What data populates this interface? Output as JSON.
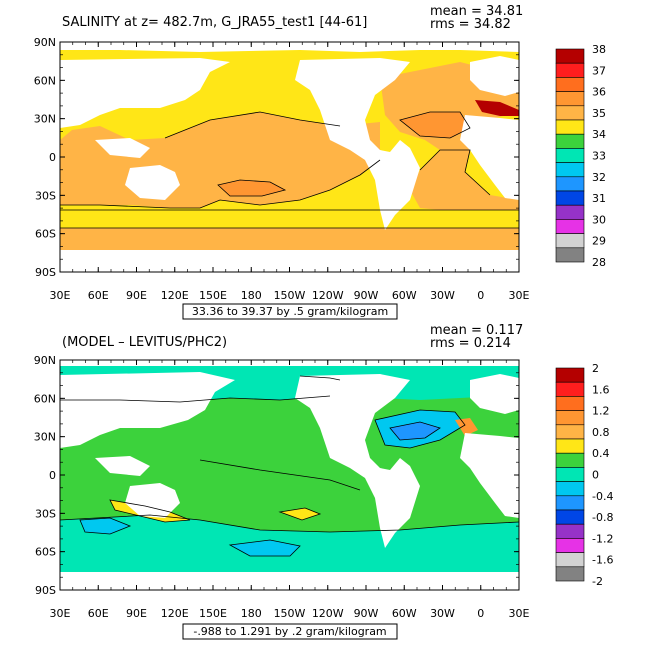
{
  "panels": [
    {
      "title": "SALINITY at z= 482.7m, G_JRA55_test1 [44-61]",
      "mean_text": "mean = 34.81",
      "rms_text": "rms = 34.82",
      "range_text": "33.36 to 39.37 by .5 gram/kilogram",
      "background_color": "#ffe617",
      "colorbar_labels": [
        "38",
        "37",
        "36",
        "35",
        "34",
        "33",
        "32",
        "31",
        "30",
        "29",
        "28"
      ],
      "colorbar_colors": [
        "#b40000",
        "#ff1e1e",
        "#ff6e1e",
        "#ff9632",
        "#ffb446",
        "#ffe617",
        "#3cd23c",
        "#00e6b4",
        "#00c8f0",
        "#1e96ff",
        "#0046e6",
        "#9632c8",
        "#e632e6",
        "#d2d2d2",
        "#828282"
      ]
    },
    {
      "title": "(MODEL – LEVITUS/PHC2)",
      "mean_text": "mean = 0.117",
      "rms_text": "rms = 0.214",
      "range_text": "-.988 to 1.291 by .2 gram/kilogram",
      "background_color": "#3cd23c",
      "colorbar_labels": [
        "2",
        "1.6",
        "1.2",
        "0.8",
        "0.4",
        "0",
        "-0.4",
        "-0.8",
        "-1.2",
        "-1.6",
        "-2"
      ],
      "colorbar_colors": [
        "#b40000",
        "#ff1e1e",
        "#ff6e1e",
        "#ff9632",
        "#ffb446",
        "#ffe617",
        "#3cd23c",
        "#00e6b4",
        "#00c8f0",
        "#1e96ff",
        "#0046e6",
        "#9632c8",
        "#e632e6",
        "#d2d2d2",
        "#828282"
      ]
    }
  ],
  "lat_labels": [
    "90N",
    "60N",
    "30N",
    "0",
    "30S",
    "60S",
    "90S"
  ],
  "lon_labels": [
    "30E",
    "60E",
    "90E",
    "120E",
    "150E",
    "180",
    "150W",
    "120W",
    "90W",
    "60W",
    "30W",
    "0",
    "30E"
  ]
}
